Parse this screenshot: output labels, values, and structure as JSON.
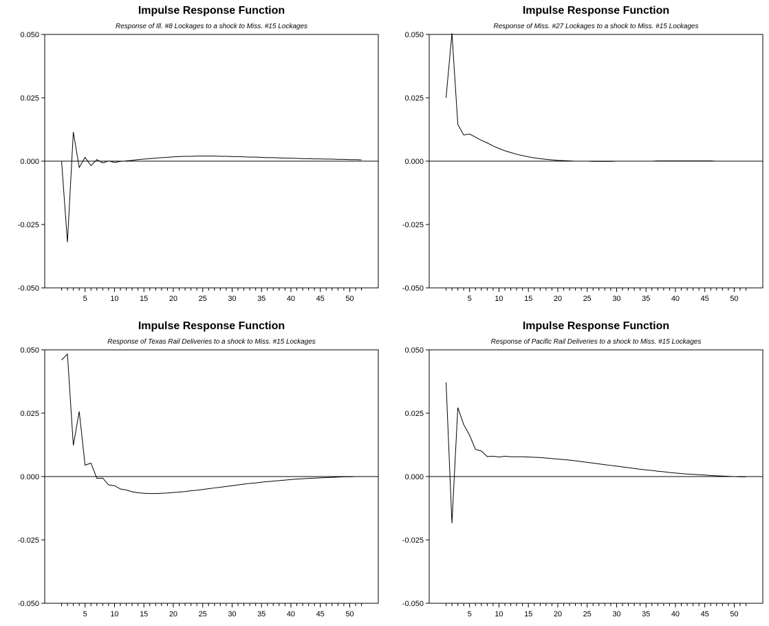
{
  "chart_data": [
    {
      "type": "line",
      "title": "Impulse Response Function",
      "subtitle": "Response of Ill. #8 Lockages to a shock to Miss. #15 Lockages",
      "xlim": [
        1,
        52
      ],
      "ylim": [
        -0.05,
        0.05
      ],
      "x_ticks": [
        "5",
        "10",
        "15",
        "20",
        "25",
        "30",
        "35",
        "40",
        "45",
        "50"
      ],
      "y_ticks": [
        "0.050",
        "0.025",
        "0.000",
        "-0.025",
        "-0.050"
      ],
      "zero_line": true,
      "series": [
        {
          "x": [
            1,
            2,
            3,
            4,
            5,
            6,
            7,
            8,
            9,
            10,
            11,
            12,
            13,
            14,
            15,
            16,
            17,
            18,
            19,
            20,
            21,
            22,
            23,
            24,
            25,
            26,
            27,
            28,
            29,
            30,
            31,
            32,
            33,
            34,
            35,
            36,
            37,
            38,
            39,
            40,
            41,
            42,
            43,
            44,
            45,
            46,
            47,
            48,
            49,
            50,
            51,
            52
          ],
          "values": [
            0.0,
            -0.032,
            0.0115,
            -0.0025,
            0.0015,
            -0.0018,
            0.0006,
            -0.0007,
            0.0001,
            -0.0005,
            -0.0001,
            0.0001,
            0.0003,
            0.0006,
            0.0008,
            0.001,
            0.0012,
            0.0014,
            0.0015,
            0.0017,
            0.0018,
            0.0019,
            0.0019,
            0.002,
            0.002,
            0.002,
            0.002,
            0.0019,
            0.0019,
            0.0018,
            0.0018,
            0.0017,
            0.0016,
            0.0016,
            0.0015,
            0.0014,
            0.0014,
            0.0013,
            0.0012,
            0.0012,
            0.0011,
            0.001,
            0.001,
            0.0009,
            0.0009,
            0.0008,
            0.0008,
            0.0007,
            0.0007,
            0.0006,
            0.0006,
            0.0005
          ]
        }
      ]
    },
    {
      "type": "line",
      "title": "Impulse Response Function",
      "subtitle": "Response of Miss. #27 Lockages to a shock to Miss. #15 Lockages",
      "xlim": [
        1,
        52
      ],
      "ylim": [
        -0.05,
        0.05
      ],
      "x_ticks": [
        "5",
        "10",
        "15",
        "20",
        "25",
        "30",
        "35",
        "40",
        "45",
        "50"
      ],
      "y_ticks": [
        "0.050",
        "0.025",
        "0.000",
        "-0.025",
        "-0.050"
      ],
      "zero_line": true,
      "series": [
        {
          "x": [
            1,
            2,
            3,
            4,
            5,
            6,
            7,
            8,
            9,
            10,
            11,
            12,
            13,
            14,
            15,
            16,
            17,
            18,
            19,
            20,
            21,
            22,
            23,
            24,
            25,
            26,
            27,
            28,
            29,
            30,
            31,
            32,
            33,
            34,
            35,
            36,
            37,
            38,
            39,
            40,
            41,
            42,
            43,
            44,
            45,
            46,
            47,
            48,
            49,
            50,
            51,
            52
          ],
          "values": [
            0.025,
            0.0505,
            0.0145,
            0.0103,
            0.0107,
            0.0095,
            0.0082,
            0.0072,
            0.006,
            0.005,
            0.0041,
            0.0034,
            0.0027,
            0.0022,
            0.0017,
            0.0013,
            0.001,
            0.0007,
            0.0005,
            0.0003,
            0.0002,
            0.0001,
            0.0,
            0.0,
            0.0,
            -0.0001,
            -0.0001,
            -0.0001,
            -0.0001,
            0.0,
            0.0,
            0.0,
            0.0,
            0.0,
            0.0,
            0.0,
            0.0001,
            0.0001,
            0.0001,
            0.0001,
            0.0001,
            0.0001,
            0.0001,
            0.0001,
            0.0001,
            0.0001,
            0.0,
            0.0,
            0.0,
            0.0,
            0.0,
            0.0
          ]
        }
      ]
    },
    {
      "type": "line",
      "title": "Impulse Response Function",
      "subtitle": "Response of Texas Rail Deliveries to a shock to Miss. #15 Lockages",
      "xlim": [
        1,
        52
      ],
      "ylim": [
        -0.05,
        0.05
      ],
      "x_ticks": [
        "5",
        "10",
        "15",
        "20",
        "25",
        "30",
        "35",
        "40",
        "45",
        "50"
      ],
      "y_ticks": [
        "0.050",
        "0.025",
        "0.000",
        "-0.025",
        "-0.050"
      ],
      "zero_line": true,
      "series": [
        {
          "x": [
            1,
            2,
            3,
            4,
            5,
            6,
            7,
            8,
            9,
            10,
            11,
            12,
            13,
            14,
            15,
            16,
            17,
            18,
            19,
            20,
            21,
            22,
            23,
            24,
            25,
            26,
            27,
            28,
            29,
            30,
            31,
            32,
            33,
            34,
            35,
            36,
            37,
            38,
            39,
            40,
            41,
            42,
            43,
            44,
            45,
            46,
            47,
            48,
            49,
            50,
            51,
            52
          ],
          "values": [
            0.046,
            0.0483,
            0.0123,
            0.0257,
            0.0045,
            0.0053,
            -0.0007,
            -0.0006,
            -0.0033,
            -0.0036,
            -0.0049,
            -0.0053,
            -0.006,
            -0.0064,
            -0.0066,
            -0.0067,
            -0.0067,
            -0.0066,
            -0.0065,
            -0.0063,
            -0.0061,
            -0.0059,
            -0.0056,
            -0.0054,
            -0.0051,
            -0.0048,
            -0.0045,
            -0.0042,
            -0.0039,
            -0.0036,
            -0.0033,
            -0.003,
            -0.0027,
            -0.0025,
            -0.0022,
            -0.002,
            -0.0018,
            -0.0016,
            -0.0014,
            -0.0012,
            -0.001,
            -0.0009,
            -0.0007,
            -0.0006,
            -0.0005,
            -0.0004,
            -0.0003,
            -0.0002,
            -0.0001,
            -0.0001,
            0.0,
            0.0
          ]
        }
      ]
    },
    {
      "type": "line",
      "title": "Impulse Response Function",
      "subtitle": "Response of Pacific Rail Deliveries to a shock to Miss. #15 Lockages",
      "xlim": [
        1,
        52
      ],
      "ylim": [
        -0.05,
        0.05
      ],
      "x_ticks": [
        "5",
        "10",
        "15",
        "20",
        "25",
        "30",
        "35",
        "40",
        "45",
        "50"
      ],
      "y_ticks": [
        "0.050",
        "0.025",
        "0.000",
        "-0.025",
        "-0.050"
      ],
      "zero_line": true,
      "series": [
        {
          "x": [
            1,
            2,
            3,
            4,
            5,
            6,
            7,
            8,
            9,
            10,
            11,
            12,
            13,
            14,
            15,
            16,
            17,
            18,
            19,
            20,
            21,
            22,
            23,
            24,
            25,
            26,
            27,
            28,
            29,
            30,
            31,
            32,
            33,
            34,
            35,
            36,
            37,
            38,
            39,
            40,
            41,
            42,
            43,
            44,
            45,
            46,
            47,
            48,
            49,
            50,
            51,
            52
          ],
          "values": [
            0.0372,
            -0.0184,
            0.0272,
            0.0205,
            0.0163,
            0.0107,
            0.0101,
            0.0079,
            0.008,
            0.0077,
            0.008,
            0.0078,
            0.0078,
            0.0078,
            0.0077,
            0.0076,
            0.0075,
            0.0073,
            0.0071,
            0.0069,
            0.0067,
            0.0065,
            0.0062,
            0.0059,
            0.0056,
            0.0053,
            0.005,
            0.0047,
            0.0044,
            0.0041,
            0.0038,
            0.0035,
            0.0032,
            0.0029,
            0.0026,
            0.0024,
            0.0021,
            0.0019,
            0.0016,
            0.0014,
            0.0012,
            0.001,
            0.0009,
            0.0007,
            0.0006,
            0.0004,
            0.0003,
            0.0002,
            0.0001,
            0.0,
            -0.0001,
            -0.0001
          ]
        }
      ]
    }
  ]
}
